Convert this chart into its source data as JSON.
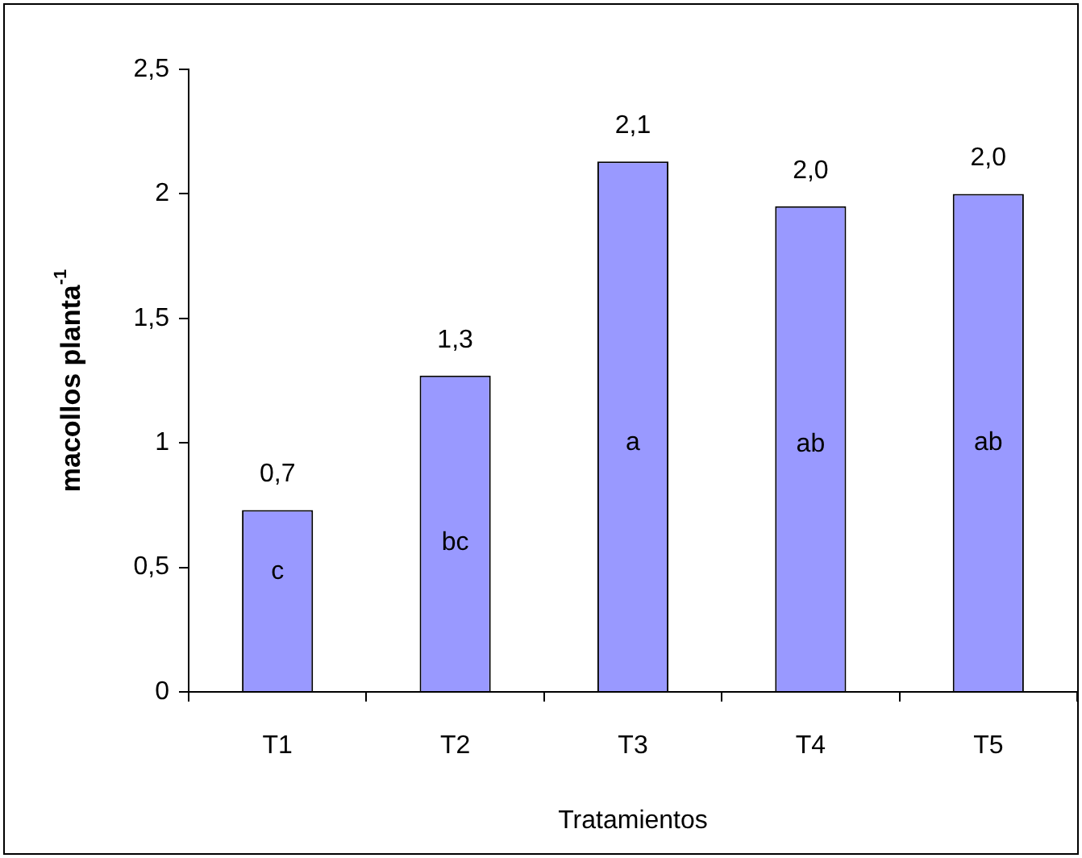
{
  "chart_data": {
    "type": "bar",
    "xlabel": "Tratamientos",
    "ylabel": "macollos planta$^{-1}$",
    "categories": [
      "T1",
      "T2",
      "T3",
      "T4",
      "T5"
    ],
    "values": [
      0.73,
      1.27,
      2.13,
      1.95,
      2.0
    ],
    "value_labels": [
      "0,7",
      "1,3",
      "2,1",
      "2,0",
      "2,0"
    ],
    "color": "#9999ff",
    "ylim": [
      0,
      2.5
    ],
    "yticks": [
      0,
      {
        "value": 0.5,
        "label": "0,5"
      },
      1,
      {
        "value": 1.5,
        "label": "1,5"
      },
      2,
      {
        "value": 2.5,
        "label": "2,5"
      }
    ],
    "grid": false,
    "legend": false,
    "annotations": [
      "c",
      "bc",
      "a",
      "ab",
      "ab"
    ]
  }
}
